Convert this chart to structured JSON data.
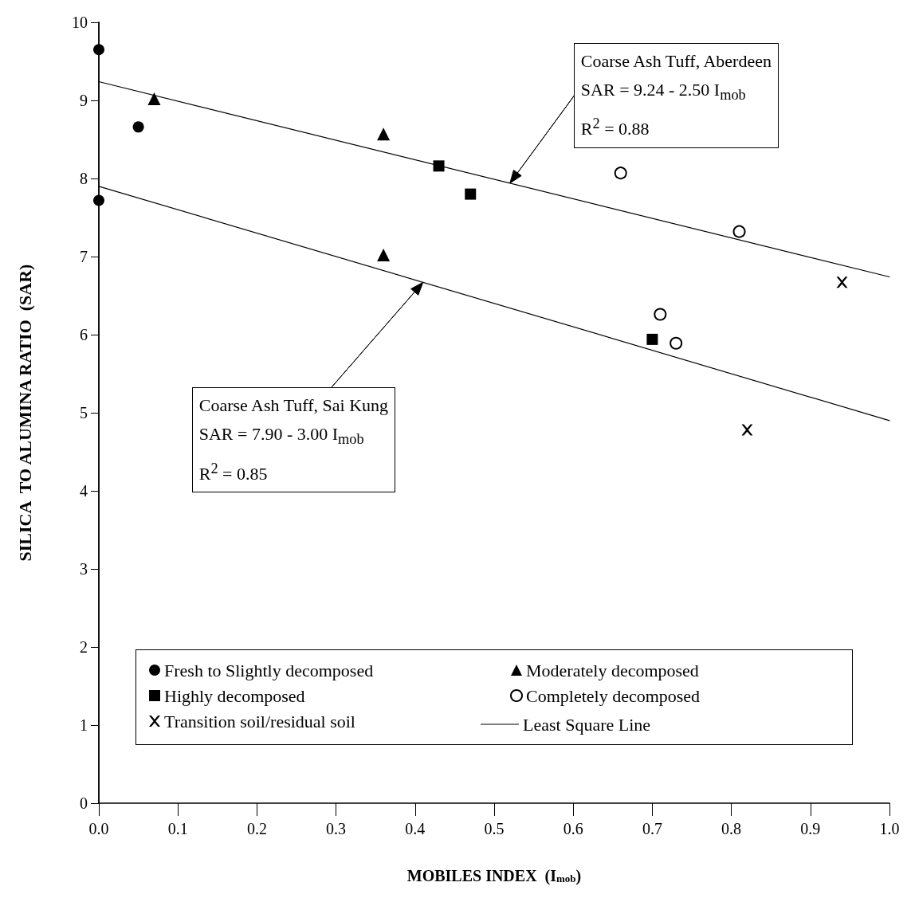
{
  "chart_data": {
    "type": "scatter",
    "xlabel": "MOBILES INDEX  (I$_{mob}$)",
    "ylabel": "SILICA  TO ALUMINA RATIO  (SAR)",
    "xlim": [
      0,
      1
    ],
    "ylim": [
      0,
      10
    ],
    "xticks": [
      {
        "value": 0,
        "label": "0.0"
      },
      0.1,
      0.2,
      0.3,
      0.4,
      0.5,
      0.6,
      0.7,
      0.8,
      0.9,
      {
        "value": 1,
        "label": "1.0"
      }
    ],
    "yticks": [
      0,
      1,
      2,
      3,
      4,
      5,
      6,
      7,
      8,
      9,
      10
    ],
    "grid": false,
    "legend": "bottom",
    "series": [
      {
        "name": "Fresh to Slightly decomposed",
        "color": "#000000",
        "marker": "circle",
        "x": [
          0,
          0.05,
          0
        ],
        "values": [
          9.65,
          8.66,
          7.72
        ]
      },
      {
        "name": "Moderately decomposed",
        "color": "#000000",
        "marker": "triangle",
        "x": [
          0.07,
          0.36,
          0.36
        ],
        "values": [
          9.02,
          8.57,
          7.02
        ]
      },
      {
        "name": "Highly decomposed",
        "color": "#000000",
        "marker": "square",
        "x": [
          0.43,
          0.47,
          0.7
        ],
        "values": [
          8.16,
          7.8,
          5.94
        ]
      },
      {
        "name": "Completely decomposed",
        "color": "#ffffff",
        "marker": "circle",
        "x": [
          0.66,
          0.81,
          0.71,
          0.73
        ],
        "values": [
          8.07,
          7.32,
          6.26,
          5.89
        ]
      },
      {
        "name": "Transition soil/residual soil",
        "color": "#000000",
        "marker": "cross",
        "x": [
          0.94,
          0.82
        ],
        "values": [
          6.67,
          4.78
        ]
      },
      {
        "name": "Least Square Line",
        "type": "line",
        "color": "#000000",
        "marker": "none",
        "line_style": "solid",
        "x": [
          0,
          1
        ],
        "values": [
          9.24,
          6.74
        ]
      },
      {
        "type": "line",
        "color": "#000000",
        "marker": "none",
        "line_style": "solid",
        "x": [
          0,
          1
        ],
        "values": [
          7.9,
          4.9
        ]
      }
    ],
    "annotations": [
      "Coarse Ash Tuff, Aberdeen",
      "SAR = 9.24 - 2.50 I$_{mob}$",
      "R$^{2}$ = 0.88",
      "Coarse Ash Tuff, Sai Kung",
      "SAR = 7.90 - 3.00 I$_{mob}$",
      "R$^{2}$ = 0.85"
    ]
  }
}
